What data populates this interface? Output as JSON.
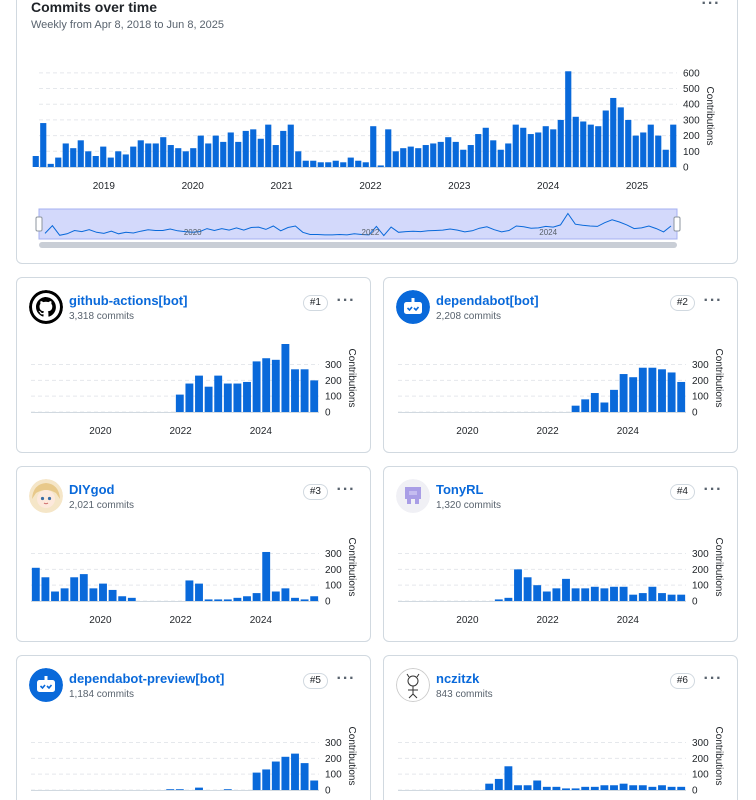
{
  "main": {
    "title": "Commits over time",
    "subtitle": "Weekly from Apr 8, 2018 to Jun 8, 2025",
    "more_label": "···"
  },
  "chart_data": [
    {
      "type": "bar",
      "title": "Commits over time",
      "subtitle": "Weekly from Apr 8, 2018 to Jun 8, 2025",
      "ylabel": "Contributions",
      "ylim": [
        0,
        650
      ],
      "yticks": [
        0,
        100,
        200,
        300,
        400,
        500,
        600
      ],
      "xticks": [
        "2019",
        "2020",
        "2021",
        "2022",
        "2023",
        "2024",
        "2025"
      ],
      "x_range": [
        2018.27,
        2025.45
      ],
      "grid": true,
      "values": [
        70,
        280,
        20,
        60,
        150,
        120,
        170,
        100,
        70,
        130,
        60,
        100,
        80,
        130,
        170,
        150,
        150,
        190,
        140,
        120,
        100,
        120,
        200,
        150,
        200,
        160,
        220,
        160,
        230,
        240,
        180,
        270,
        140,
        230,
        270,
        100,
        40,
        40,
        30,
        30,
        40,
        30,
        60,
        40,
        30,
        260,
        10,
        240,
        100,
        120,
        130,
        120,
        140,
        150,
        160,
        190,
        160,
        110,
        140,
        210,
        250,
        170,
        110,
        150,
        270,
        250,
        210,
        220,
        260,
        240,
        300,
        610,
        320,
        290,
        270,
        260,
        360,
        440,
        380,
        300,
        200,
        220,
        270,
        200,
        110,
        270
      ],
      "brush": {
        "xticks": [
          "2020",
          "2022",
          "2024"
        ]
      }
    },
    {
      "type": "bar",
      "ylabel": "Contributions",
      "ylim": [
        0,
        430
      ],
      "yticks": [
        0,
        100,
        200,
        300
      ],
      "xticks": [
        "2020",
        "2022",
        "2024"
      ],
      "x_range": [
        2018.27,
        2025.45
      ],
      "values": [
        0,
        0,
        0,
        0,
        0,
        0,
        0,
        0,
        0,
        0,
        0,
        0,
        0,
        0,
        0,
        0,
        0,
        0,
        0,
        0,
        0,
        0,
        110,
        180,
        230,
        160,
        230,
        180,
        180,
        190,
        320,
        340,
        330,
        430,
        270,
        270,
        200
      ]
    },
    {
      "type": "bar",
      "ylabel": "Contributions",
      "ylim": [
        0,
        430
      ],
      "yticks": [
        0,
        100,
        200,
        300
      ],
      "xticks": [
        "2020",
        "2022",
        "2024"
      ],
      "x_range": [
        2018.27,
        2025.45
      ],
      "values": [
        0,
        0,
        0,
        0,
        0,
        0,
        0,
        0,
        0,
        0,
        0,
        0,
        0,
        0,
        0,
        0,
        0,
        0,
        0,
        0,
        0,
        0,
        0,
        0,
        0,
        0,
        0,
        0,
        40,
        80,
        120,
        60,
        140,
        240,
        220,
        280,
        280,
        270,
        250,
        190
      ]
    },
    {
      "type": "bar",
      "ylabel": "Contributions",
      "ylim": [
        0,
        430
      ],
      "yticks": [
        0,
        100,
        200,
        300
      ],
      "xticks": [
        "2020",
        "2022",
        "2024"
      ],
      "x_range": [
        2018.27,
        2025.45
      ],
      "values": [
        210,
        150,
        60,
        80,
        150,
        170,
        80,
        110,
        70,
        30,
        20,
        0,
        0,
        0,
        0,
        0,
        130,
        110,
        10,
        10,
        10,
        20,
        30,
        50,
        310,
        60,
        80,
        20,
        10,
        30
      ]
    },
    {
      "type": "bar",
      "ylabel": "Contributions",
      "ylim": [
        0,
        430
      ],
      "yticks": [
        0,
        100,
        200,
        300
      ],
      "xticks": [
        "2020",
        "2022",
        "2024"
      ],
      "x_range": [
        2018.27,
        2025.45
      ],
      "values": [
        0,
        0,
        0,
        0,
        0,
        0,
        0,
        0,
        0,
        0,
        0,
        0,
        0,
        0,
        0,
        0,
        0,
        0,
        0,
        0,
        0,
        0,
        10,
        20,
        200,
        150,
        100,
        60,
        80,
        140,
        80,
        80,
        90,
        80,
        90,
        90,
        40,
        50,
        90,
        50,
        40,
        40
      ]
    },
    {
      "type": "bar",
      "ylabel": "Contributions",
      "ylim": [
        0,
        430
      ],
      "yticks": [
        0,
        100,
        200,
        300
      ],
      "xticks": [],
      "x_range": [
        2018.27,
        2025.45
      ],
      "values": [
        5,
        5,
        0,
        15,
        0,
        0,
        5,
        0,
        0,
        110,
        130,
        180,
        210,
        230,
        170,
        60
      ]
    },
    {
      "type": "bar",
      "ylabel": "Contributions",
      "ylim": [
        0,
        430
      ],
      "yticks": [
        0,
        100,
        200,
        300
      ],
      "xticks": [],
      "x_range": [
        2018.27,
        2025.45
      ],
      "values": [
        0,
        0,
        0,
        0,
        0,
        0,
        0,
        0,
        0,
        0,
        0,
        0,
        0,
        0,
        0,
        0,
        0,
        0,
        0,
        0,
        0,
        0,
        40,
        70,
        150,
        30,
        30,
        60,
        20,
        20,
        10,
        10,
        20,
        20,
        30,
        30,
        40,
        30,
        30,
        20,
        30,
        20,
        20
      ]
    }
  ],
  "contributors": [
    {
      "name": "github-actions[bot]",
      "commits": "3,318 commits",
      "rank": "#1",
      "more": "···",
      "avatar": "github-logo"
    },
    {
      "name": "dependabot[bot]",
      "commits": "2,208 commits",
      "rank": "#2",
      "more": "···",
      "avatar": "dependabot-logo"
    },
    {
      "name": "DIYgod",
      "commits": "2,021 commits",
      "rank": "#3",
      "more": "···",
      "avatar": "anime-avatar"
    },
    {
      "name": "TonyRL",
      "commits": "1,320 commits",
      "rank": "#4",
      "more": "···",
      "avatar": "pixel-identicon"
    },
    {
      "name": "dependabot-preview[bot]",
      "commits": "1,184 commits",
      "rank": "#5",
      "more": "···",
      "avatar": "dependabot-logo"
    },
    {
      "name": "nczitzk",
      "commits": "843 commits",
      "rank": "#6",
      "more": "···",
      "avatar": "sketch-avatar"
    }
  ],
  "colors": {
    "bar": "#0969da",
    "grid": "#e5e8ec",
    "text_muted": "#59636e",
    "brush_fill": "#d3d9fb",
    "brush_border": "#a5b0f0"
  }
}
